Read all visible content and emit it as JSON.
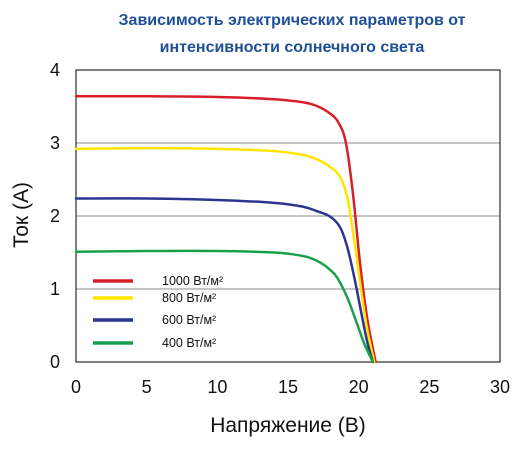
{
  "chart_data": {
    "type": "line",
    "title": "Зависимость электрических параметров от интенсивности солнечного света",
    "title_lines": [
      "Зависимость электрических параметров от",
      "интенсивности солнечного света"
    ],
    "xlabel": "Напряжение (В)",
    "ylabel": "Ток (А)",
    "xlim": [
      0,
      30
    ],
    "ylim": [
      0,
      4
    ],
    "xticks": [
      0,
      5,
      10,
      15,
      20,
      25,
      30
    ],
    "yticks": [
      0,
      1,
      2,
      3,
      4
    ],
    "grid": {
      "horizontal": true,
      "vertical": false
    },
    "legend_placement": "bottom-left",
    "series": [
      {
        "name": "1000 Вт/м²",
        "color": "#d71f2b",
        "x": [
          0,
          5,
          10,
          14,
          16,
          17,
          18,
          18.6,
          19.1,
          19.6,
          20.1,
          20.6,
          21.2
        ],
        "y": [
          3.64,
          3.64,
          3.63,
          3.6,
          3.56,
          3.51,
          3.4,
          3.27,
          3.0,
          2.3,
          1.35,
          0.6,
          0
        ]
      },
      {
        "name": "800 Вт/м²",
        "color": "#ffe500",
        "x": [
          0,
          5,
          10,
          14,
          16,
          17,
          18,
          18.7,
          19.2,
          19.7,
          20.2,
          20.6,
          21.1
        ],
        "y": [
          2.92,
          2.93,
          2.92,
          2.89,
          2.84,
          2.78,
          2.67,
          2.53,
          2.25,
          1.65,
          0.95,
          0.45,
          0
        ]
      },
      {
        "name": "600 Вт/м²",
        "color": "#2d3592",
        "x": [
          0,
          5,
          10,
          14,
          16,
          17,
          18,
          18.7,
          19.2,
          19.7,
          20.2,
          20.6,
          21.0
        ],
        "y": [
          2.24,
          2.24,
          2.22,
          2.18,
          2.13,
          2.07,
          1.99,
          1.84,
          1.57,
          1.15,
          0.66,
          0.28,
          0
        ]
      },
      {
        "name": "400 Вт/м²",
        "color": "#1aa04d",
        "x": [
          0,
          5,
          10,
          14,
          15.5,
          16.5,
          17.3,
          18.0,
          18.5,
          19.2,
          19.8,
          20.4,
          21.0
        ],
        "y": [
          1.51,
          1.52,
          1.52,
          1.5,
          1.47,
          1.43,
          1.36,
          1.26,
          1.15,
          0.88,
          0.57,
          0.25,
          0
        ]
      }
    ]
  }
}
